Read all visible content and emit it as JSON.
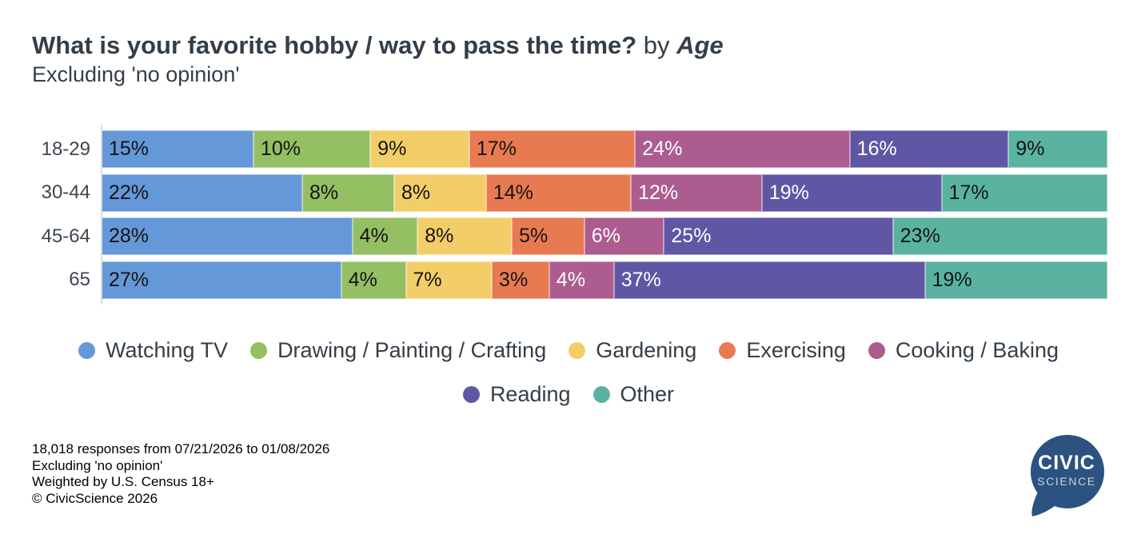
{
  "header": {
    "title_main": "What is your favorite hobby / way to pass the time?",
    "title_by": " by ",
    "title_emphasis": "Age",
    "subtitle": "Excluding 'no opinion'"
  },
  "chart_data": {
    "type": "bar",
    "variant": "horizontal-stacked-100",
    "title": "What is your favorite hobby / way to pass the time? by Age",
    "subtitle": "Excluding 'no opinion'",
    "categories": [
      "18-29",
      "30-44",
      "45-64",
      "65"
    ],
    "series": [
      {
        "name": "Watching TV",
        "color": "#6598d8",
        "label_color": "#141414",
        "values": [
          15,
          22,
          28,
          27
        ]
      },
      {
        "name": "Drawing / Painting / Crafting",
        "color": "#94bf63",
        "label_color": "#141414",
        "values": [
          10,
          8,
          4,
          4
        ]
      },
      {
        "name": "Gardening",
        "color": "#f3ce68",
        "label_color": "#141414",
        "values": [
          9,
          8,
          8,
          7
        ]
      },
      {
        "name": "Exercising",
        "color": "#e87a52",
        "label_color": "#141414",
        "values": [
          17,
          14,
          5,
          3
        ]
      },
      {
        "name": "Cooking / Baking",
        "color": "#ad5c8f",
        "label_color": "#ffffff",
        "values": [
          24,
          12,
          6,
          4
        ]
      },
      {
        "name": "Reading",
        "color": "#5f57a4",
        "label_color": "#ffffff",
        "values": [
          16,
          19,
          25,
          37
        ]
      },
      {
        "name": "Other",
        "color": "#5ab3a1",
        "label_color": "#141414",
        "values": [
          9,
          17,
          23,
          19
        ]
      }
    ],
    "value_suffix": "%",
    "xlim": [
      0,
      100
    ],
    "grid": false,
    "legend_position": "bottom",
    "legend_rows": [
      [
        0,
        1,
        2,
        3,
        4
      ],
      [
        5,
        6
      ]
    ]
  },
  "footer": {
    "lines": [
      "18,018 responses from 07/21/2026 to 01/08/2026",
      "Excluding 'no opinion'",
      "Weighted by U.S. Census 18+",
      "© CivicScience 2026"
    ]
  },
  "logo": {
    "line1": "CIVIC",
    "line2": "SCIENCE",
    "bubble_color": "#2b5280"
  }
}
